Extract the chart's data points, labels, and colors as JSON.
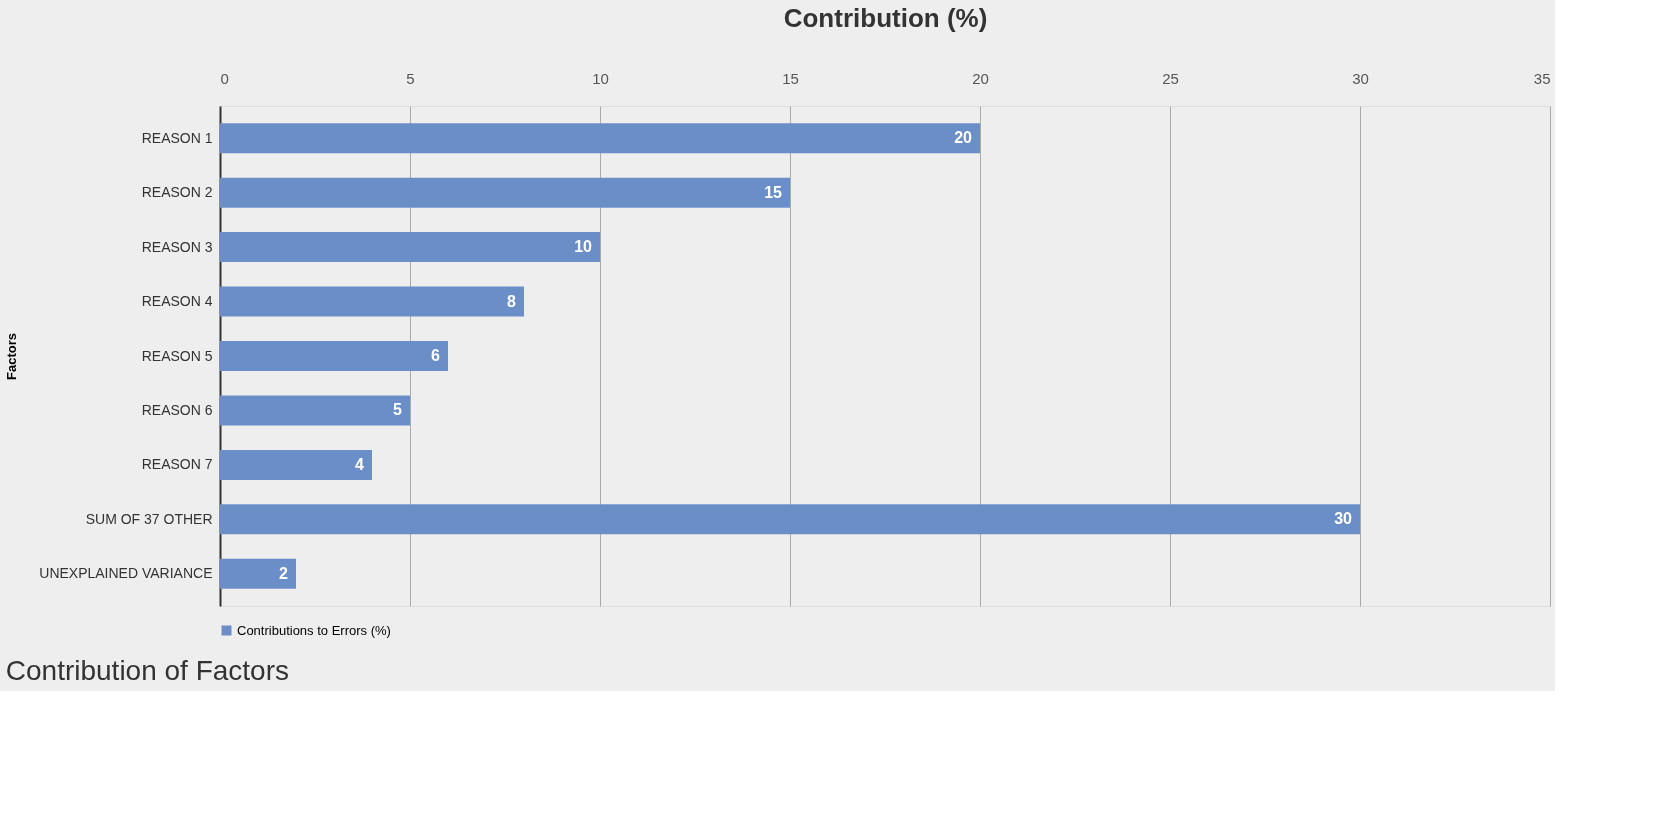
{
  "chart_data": {
    "type": "bar",
    "orientation": "horizontal",
    "title": "Contribution of Factors",
    "xlabel": "Contribution (%)",
    "ylabel": "Factors",
    "categories": [
      "REASON 1",
      "REASON 2",
      "REASON 3",
      "REASON 4",
      "REASON 5",
      "REASON 6",
      "REASON 7",
      "SUM OF 37 OTHER",
      "UNEXPLAINED VARIANCE"
    ],
    "series": [
      {
        "name": "Contributions to Errors (%)",
        "color": "#6a8fc8",
        "values": [
          20,
          15,
          10,
          8,
          6,
          5,
          4,
          30,
          2
        ]
      }
    ],
    "xlim": [
      0,
      35
    ],
    "xticks": [
      0,
      5,
      10,
      15,
      20,
      25,
      30,
      35
    ],
    "grid": "x",
    "legend": "bottom",
    "data_labels": true
  }
}
